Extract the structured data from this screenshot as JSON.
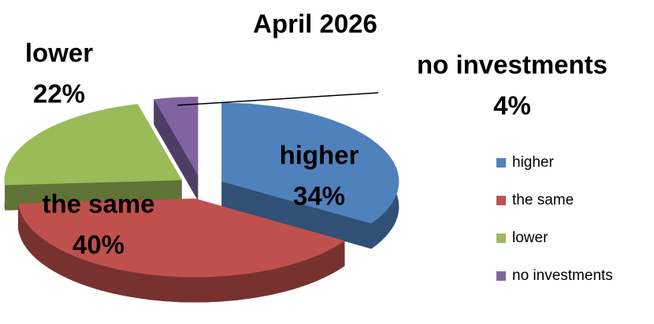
{
  "chart_data": {
    "type": "pie",
    "title": "April 2026",
    "categories": [
      "higher",
      "the same",
      "lower",
      "no investments"
    ],
    "values": [
      34,
      40,
      22,
      4
    ],
    "value_labels": [
      "34%",
      "40%",
      "22%",
      "4%"
    ],
    "colors": [
      "#4f81bd",
      "#c0504d",
      "#9bbb59",
      "#8064a2"
    ],
    "legend": "right"
  }
}
